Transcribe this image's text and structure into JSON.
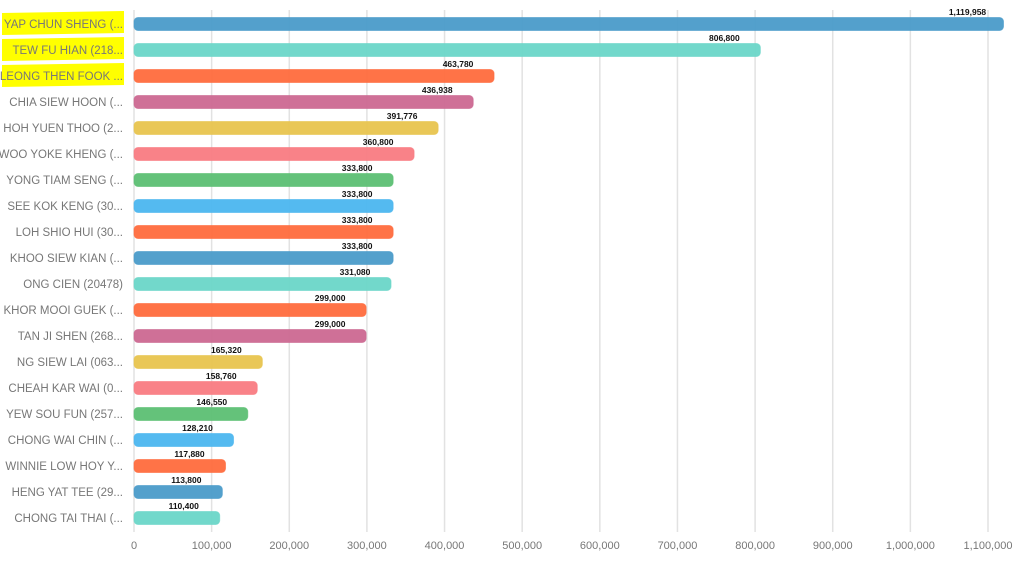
{
  "chart_data": {
    "type": "bar",
    "orientation": "horizontal",
    "categories": [
      "YAP CHUN SHENG (...",
      "TEW FU HIAN (218...",
      "LEONG THEN FOOK ...",
      "CHIA SIEW HOON (...",
      "HOH YUEN THOO (2...",
      "WOO YOKE KHENG (...",
      "YONG TIAM SENG (...",
      "SEE KOK KENG (30...",
      "LOH SHIO HUI (30...",
      "KHOO SIEW KIAN (...",
      "ONG CIEN (20478)",
      "KHOR MOOI GUEK (...",
      "TAN JI SHEN (268...",
      "NG SIEW LAI (063...",
      "CHEAH KAR WAI (0...",
      "YEW SOU FUN (257...",
      "CHONG WAI CHIN (...",
      "WINNIE LOW HOY Y...",
      "HENG YAT TEE (29...",
      "CHONG TAI THAI (..."
    ],
    "values": [
      1119958,
      806800,
      463780,
      436938,
      391776,
      360800,
      333800,
      333800,
      333800,
      333800,
      331080,
      299000,
      299000,
      165320,
      158760,
      146550,
      128210,
      117880,
      113800,
      110400
    ],
    "data_labels": [
      "1,119,958",
      "806,800",
      "463,780",
      "436,938",
      "391,776",
      "360,800",
      "333,800",
      "333,800",
      "333,800",
      "333,800",
      "331,080",
      "299,000",
      "299,000",
      "165,320",
      "158,760",
      "146,550",
      "128,210",
      "117,880",
      "113,800",
      "110,400"
    ],
    "colors": [
      "#4a9bc9",
      "#6ad6c8",
      "#ff6b3d",
      "#cc6891",
      "#e8c44e",
      "#f97b82",
      "#5cbf73",
      "#4bb6ef",
      "#ff6b3d",
      "#4a9bc9",
      "#6ad6c8",
      "#ff6b3d",
      "#cc6891",
      "#e8c44e",
      "#f97b82",
      "#5cbf73",
      "#4bb6ef",
      "#ff6b3d",
      "#4a9bc9",
      "#6ad6c8"
    ],
    "highlighted_categories": [
      0,
      1,
      2
    ],
    "highlight_color": "#ffff00",
    "xlim": [
      0,
      1100000
    ],
    "x_ticks": [
      0,
      100000,
      200000,
      300000,
      400000,
      500000,
      600000,
      700000,
      800000,
      900000,
      1000000,
      1100000
    ],
    "x_tick_labels": [
      "0",
      "100,000",
      "200,000",
      "300,000",
      "400,000",
      "500,000",
      "600,000",
      "700,000",
      "800,000",
      "900,000",
      "1,000,000",
      "1,100,000"
    ],
    "grid": "vertical",
    "legend": "none"
  }
}
